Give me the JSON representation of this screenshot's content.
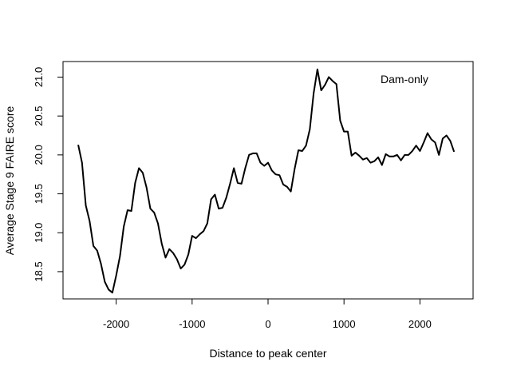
{
  "chart_data": {
    "type": "line",
    "xlabel": "Distance to peak center",
    "ylabel": "Average Stage 9 FAIRE score",
    "xlim": [
      -2700,
      2700
    ],
    "ylim": [
      18.15,
      21.2
    ],
    "x_ticks": [
      -2000,
      -1000,
      0,
      1000,
      2000
    ],
    "x_tick_labels": [
      "-2000",
      "-1000",
      "0",
      "1000",
      "2000"
    ],
    "y_ticks": [
      18.5,
      19.0,
      19.5,
      20.0,
      20.5,
      21.0
    ],
    "y_tick_labels": [
      "18.5",
      "19.0",
      "19.5",
      "20.0",
      "20.5",
      "21.0"
    ],
    "grid": false,
    "legend_position": "top-right",
    "annotation": "Dam-only",
    "series": [
      {
        "color": "#000000",
        "x": [
          -2500,
          -2450,
          -2400,
          -2350,
          -2300,
          -2250,
          -2200,
          -2150,
          -2100,
          -2050,
          -2000,
          -1950,
          -1900,
          -1850,
          -1800,
          -1750,
          -1700,
          -1650,
          -1600,
          -1550,
          -1500,
          -1450,
          -1400,
          -1350,
          -1300,
          -1250,
          -1200,
          -1150,
          -1100,
          -1050,
          -1000,
          -950,
          -900,
          -850,
          -800,
          -750,
          -700,
          -650,
          -600,
          -550,
          -500,
          -450,
          -400,
          -350,
          -300,
          -250,
          -200,
          -150,
          -100,
          -50,
          0,
          50,
          100,
          150,
          200,
          250,
          300,
          350,
          400,
          450,
          500,
          550,
          600,
          650,
          700,
          750,
          800,
          850,
          900,
          950,
          1000,
          1050,
          1100,
          1150,
          1200,
          1250,
          1300,
          1350,
          1400,
          1450,
          1500,
          1550,
          1600,
          1650,
          1700,
          1750,
          1800,
          1850,
          1900,
          1950,
          2000,
          2050,
          2100,
          2150,
          2200,
          2250,
          2300,
          2350,
          2400,
          2450
        ],
        "y": [
          20.13,
          19.9,
          19.35,
          19.15,
          18.83,
          18.77,
          18.6,
          18.37,
          18.27,
          18.23,
          18.45,
          18.7,
          19.08,
          19.29,
          19.28,
          19.64,
          19.83,
          19.77,
          19.58,
          19.31,
          19.26,
          19.12,
          18.86,
          18.68,
          18.79,
          18.74,
          18.66,
          18.54,
          18.59,
          18.72,
          18.96,
          18.93,
          18.98,
          19.02,
          19.12,
          19.43,
          19.49,
          19.31,
          19.32,
          19.45,
          19.63,
          19.83,
          19.64,
          19.63,
          19.83,
          20.0,
          20.02,
          20.02,
          19.9,
          19.86,
          19.9,
          19.8,
          19.75,
          19.74,
          19.62,
          19.59,
          19.53,
          19.82,
          20.06,
          20.05,
          20.12,
          20.33,
          20.79,
          21.1,
          20.83,
          20.9,
          21.0,
          20.95,
          20.91,
          20.44,
          20.3,
          20.3,
          19.99,
          20.03,
          19.99,
          19.94,
          19.96,
          19.9,
          19.92,
          19.97,
          19.87,
          20.01,
          19.98,
          19.98,
          20.0,
          19.93,
          20.0,
          20.0,
          20.05,
          20.12,
          20.05,
          20.16,
          20.28,
          20.2,
          20.16,
          20.0,
          20.21,
          20.25,
          20.18,
          20.04
        ]
      }
    ]
  }
}
